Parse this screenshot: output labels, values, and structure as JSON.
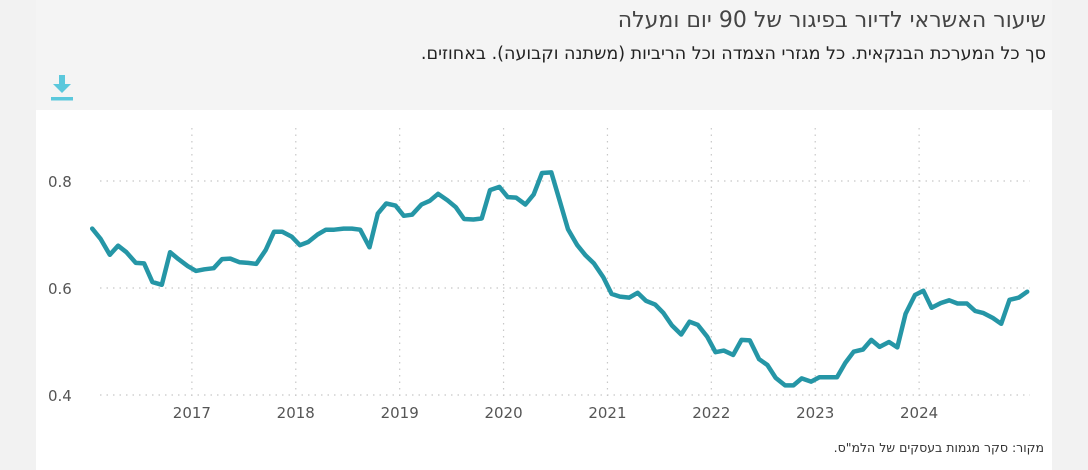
{
  "header": {
    "title": "שיעור האשראי לדיור בפיגור של 90 יום ומעלה",
    "subtitle": "סך כל המערכת הבנקאית. כל מגזרי הצמדה וכל הריביות (משתנה וקבועה). באחוזים."
  },
  "toolbar": {
    "download_icon": "download-icon"
  },
  "footer": {
    "source": "מקור: סקר מגמות בעסקים של הלמ\"ס."
  },
  "colors": {
    "line": "#2596a6",
    "download": "#5bc8dc",
    "grid": "#c8c8c8",
    "tick": "#555555"
  },
  "chart_data": {
    "type": "line",
    "title": "שיעור האשראי לדיור בפיגור של 90 יום ומעלה",
    "subtitle": "סך כל המערכת הבנקאית. כל מגזרי הצמדה וכל הריביות (משתנה וקבועה). באחוזים.",
    "xlabel": "",
    "ylabel": "",
    "xlim": [
      2016.0,
      2025.0
    ],
    "ylim": [
      0.38,
      0.89
    ],
    "grid": true,
    "x_ticks": [
      2017,
      2018,
      2019,
      2020,
      2021,
      2022,
      2023,
      2024
    ],
    "y_ticks": [
      0.4,
      0.6,
      0.8
    ],
    "y_tick_labels": [
      "0.4",
      "0.6",
      "0.8"
    ],
    "series": [
      {
        "values": [
          [
            2016.04,
            0.711
          ],
          [
            2016.12,
            0.692
          ],
          [
            2016.21,
            0.662
          ],
          [
            2016.29,
            0.679
          ],
          [
            2016.37,
            0.667
          ],
          [
            2016.46,
            0.647
          ],
          [
            2016.54,
            0.646
          ],
          [
            2016.62,
            0.611
          ],
          [
            2016.71,
            0.606
          ],
          [
            2016.79,
            0.667
          ],
          [
            2016.87,
            0.654
          ],
          [
            2016.96,
            0.641
          ],
          [
            2017.04,
            0.632
          ],
          [
            2017.12,
            0.635
          ],
          [
            2017.21,
            0.637
          ],
          [
            2017.29,
            0.654
          ],
          [
            2017.37,
            0.655
          ],
          [
            2017.46,
            0.648
          ],
          [
            2017.54,
            0.647
          ],
          [
            2017.62,
            0.645
          ],
          [
            2017.71,
            0.671
          ],
          [
            2017.79,
            0.705
          ],
          [
            2017.87,
            0.705
          ],
          [
            2017.96,
            0.696
          ],
          [
            2018.04,
            0.68
          ],
          [
            2018.12,
            0.686
          ],
          [
            2018.21,
            0.7
          ],
          [
            2018.29,
            0.709
          ],
          [
            2018.37,
            0.709
          ],
          [
            2018.46,
            0.711
          ],
          [
            2018.54,
            0.711
          ],
          [
            2018.62,
            0.709
          ],
          [
            2018.71,
            0.676
          ],
          [
            2018.79,
            0.739
          ],
          [
            2018.87,
            0.758
          ],
          [
            2018.96,
            0.754
          ],
          [
            2019.04,
            0.735
          ],
          [
            2019.12,
            0.737
          ],
          [
            2019.21,
            0.756
          ],
          [
            2019.29,
            0.763
          ],
          [
            2019.37,
            0.776
          ],
          [
            2019.46,
            0.764
          ],
          [
            2019.54,
            0.751
          ],
          [
            2019.62,
            0.729
          ],
          [
            2019.71,
            0.728
          ],
          [
            2019.79,
            0.73
          ],
          [
            2019.87,
            0.783
          ],
          [
            2019.96,
            0.789
          ],
          [
            2020.04,
            0.77
          ],
          [
            2020.12,
            0.769
          ],
          [
            2020.21,
            0.756
          ],
          [
            2020.29,
            0.775
          ],
          [
            2020.37,
            0.815
          ],
          [
            2020.46,
            0.816
          ],
          [
            2020.54,
            0.763
          ],
          [
            2020.62,
            0.71
          ],
          [
            2020.71,
            0.68
          ],
          [
            2020.79,
            0.661
          ],
          [
            2020.87,
            0.646
          ],
          [
            2020.96,
            0.62
          ],
          [
            2021.04,
            0.589
          ],
          [
            2021.12,
            0.584
          ],
          [
            2021.21,
            0.582
          ],
          [
            2021.29,
            0.591
          ],
          [
            2021.37,
            0.576
          ],
          [
            2021.46,
            0.569
          ],
          [
            2021.54,
            0.553
          ],
          [
            2021.62,
            0.53
          ],
          [
            2021.71,
            0.513
          ],
          [
            2021.79,
            0.537
          ],
          [
            2021.87,
            0.531
          ],
          [
            2021.96,
            0.509
          ],
          [
            2022.04,
            0.48
          ],
          [
            2022.12,
            0.483
          ],
          [
            2022.21,
            0.475
          ],
          [
            2022.29,
            0.503
          ],
          [
            2022.37,
            0.502
          ],
          [
            2022.46,
            0.467
          ],
          [
            2022.54,
            0.456
          ],
          [
            2022.62,
            0.432
          ],
          [
            2022.71,
            0.418
          ],
          [
            2022.79,
            0.418
          ],
          [
            2022.87,
            0.431
          ],
          [
            2022.96,
            0.425
          ],
          [
            2023.04,
            0.433
          ],
          [
            2023.12,
            0.433
          ],
          [
            2023.21,
            0.433
          ],
          [
            2023.29,
            0.46
          ],
          [
            2023.37,
            0.481
          ],
          [
            2023.46,
            0.485
          ],
          [
            2023.54,
            0.503
          ],
          [
            2023.62,
            0.49
          ],
          [
            2023.71,
            0.499
          ],
          [
            2023.79,
            0.489
          ],
          [
            2023.87,
            0.552
          ],
          [
            2023.96,
            0.587
          ],
          [
            2024.04,
            0.595
          ],
          [
            2024.12,
            0.563
          ],
          [
            2024.21,
            0.572
          ],
          [
            2024.29,
            0.577
          ],
          [
            2024.37,
            0.571
          ],
          [
            2024.46,
            0.571
          ],
          [
            2024.54,
            0.557
          ],
          [
            2024.62,
            0.553
          ],
          [
            2024.71,
            0.544
          ],
          [
            2024.79,
            0.533
          ],
          [
            2024.87,
            0.578
          ],
          [
            2024.96,
            0.582
          ],
          [
            2025.04,
            0.593
          ]
        ]
      }
    ]
  }
}
